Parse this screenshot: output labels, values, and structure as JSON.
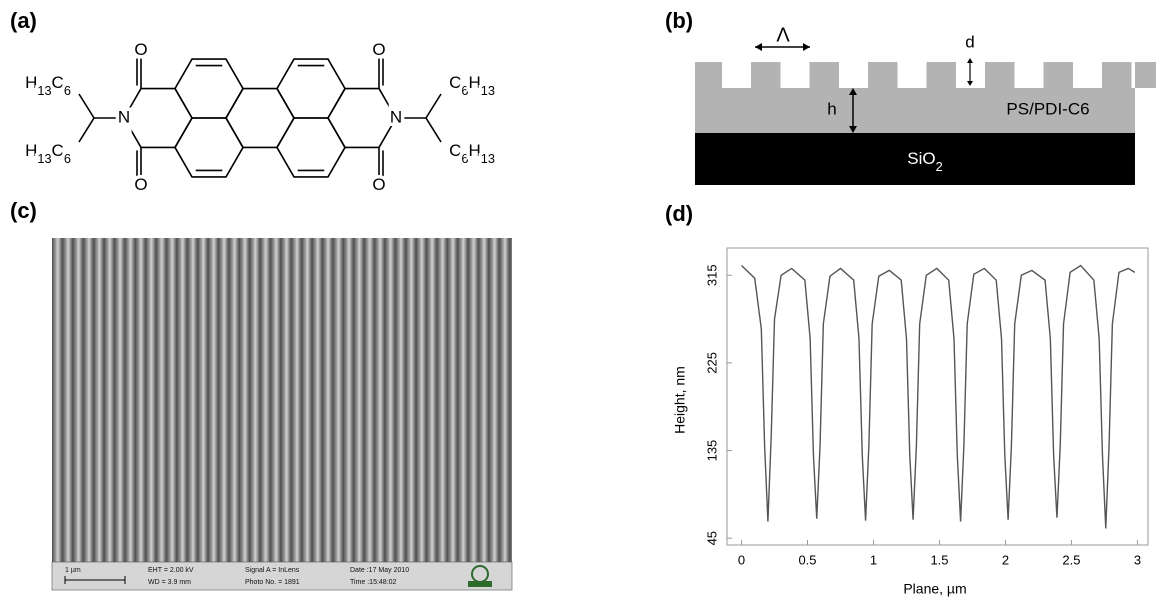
{
  "panel_labels": [
    "(a)",
    "(b)",
    "(c)",
    "(d)"
  ],
  "molecule": {
    "atoms": [
      "O",
      "O",
      "O",
      "O",
      "N",
      "N",
      "H13C6",
      "H13C6",
      "C6H13",
      "C6H13"
    ]
  },
  "schematic": {
    "period": "Λ",
    "depth": "d",
    "height": "h",
    "film": "PS/PDI-C6",
    "substrate": "SiO2"
  },
  "sem": {
    "scale_bar": "1 µm",
    "eht": "EHT = 2.00 kV",
    "wd": "WD = 3.9 mm",
    "signal": "Signal A = InLens",
    "photo": "Photo No. = 1891",
    "date": "Date :17 May 2010",
    "time": "Time :15:48:02"
  },
  "chart_data": {
    "type": "line",
    "x_label": "Plane, µm",
    "y_label": "Height, nm",
    "x": [
      0,
      0.1,
      0.15,
      0.175,
      0.2,
      0.225,
      0.25,
      0.3,
      0.38,
      0.48,
      0.52,
      0.545,
      0.57,
      0.595,
      0.62,
      0.67,
      0.75,
      0.85,
      0.89,
      0.915,
      0.94,
      0.965,
      0.99,
      1.04,
      1.12,
      1.21,
      1.25,
      1.275,
      1.3,
      1.325,
      1.35,
      1.4,
      1.48,
      1.57,
      1.61,
      1.635,
      1.66,
      1.685,
      1.71,
      1.76,
      1.84,
      1.93,
      1.97,
      1.995,
      2.02,
      2.045,
      2.07,
      2.12,
      2.2,
      2.3,
      2.34,
      2.365,
      2.39,
      2.415,
      2.44,
      2.49,
      2.57,
      2.67,
      2.71,
      2.735,
      2.76,
      2.785,
      2.81,
      2.86,
      2.93,
      2.98
    ],
    "series": [
      {
        "color": "#555555",
        "values": [
          325,
          312,
          260,
          140,
          62,
          150,
          270,
          315,
          322,
          310,
          250,
          130,
          65,
          140,
          265,
          314,
          322,
          310,
          250,
          130,
          63,
          140,
          265,
          314,
          320,
          310,
          250,
          130,
          64,
          140,
          265,
          315,
          322,
          310,
          250,
          130,
          62,
          140,
          265,
          316,
          322,
          310,
          250,
          130,
          64,
          140,
          265,
          315,
          320,
          310,
          250,
          130,
          66,
          140,
          265,
          318,
          325,
          310,
          250,
          130,
          55,
          140,
          265,
          318,
          322,
          318
        ]
      }
    ],
    "xlim": [
      -0.11,
      3.08
    ],
    "ylim": [
      38,
      343
    ],
    "xticks": [
      0,
      0.5,
      1,
      1.5,
      2,
      2.5,
      3
    ],
    "yticks": [
      45,
      135,
      225,
      315
    ]
  }
}
